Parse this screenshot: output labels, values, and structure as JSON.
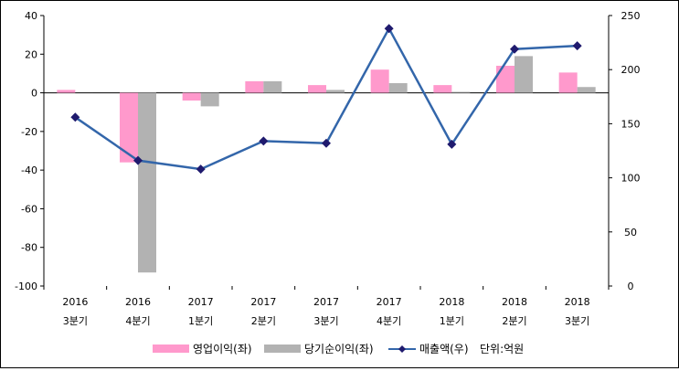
{
  "chart_data": {
    "type": "bar+line",
    "categories": [
      [
        "2016",
        "3분기"
      ],
      [
        "2016",
        "4분기"
      ],
      [
        "2017",
        "1분기"
      ],
      [
        "2017",
        "2분기"
      ],
      [
        "2017",
        "3분기"
      ],
      [
        "2017",
        "4분기"
      ],
      [
        "2018",
        "1분기"
      ],
      [
        "2018",
        "2분기"
      ],
      [
        "2018",
        "3분기"
      ]
    ],
    "series": [
      {
        "name": "영업이익(좌)",
        "kind": "bar",
        "axis": "left",
        "color": "#ff99cc",
        "values": [
          1.5,
          -36,
          -4,
          6,
          4,
          12,
          4,
          14,
          10.5
        ]
      },
      {
        "name": "당기순이익(좌)",
        "kind": "bar",
        "axis": "left",
        "color": "#b2b2b2",
        "values": [
          0,
          -93,
          -7,
          6,
          1.5,
          5,
          0.5,
          19,
          3
        ]
      },
      {
        "name": "매출액(우)",
        "kind": "line",
        "axis": "right",
        "color": "#3366aa",
        "marker_color": "#1f1a6e",
        "values": [
          156,
          116,
          108,
          134,
          132,
          238,
          131,
          219,
          222
        ]
      }
    ],
    "left_axis": {
      "ylim": [
        -100,
        40
      ],
      "ticks": [
        "40",
        "20",
        "0",
        "-20",
        "-40",
        "-60",
        "-80",
        "-100"
      ]
    },
    "right_axis": {
      "ylim": [
        0,
        250
      ],
      "ticks": [
        "250",
        "200",
        "150",
        "100",
        "50",
        "0"
      ]
    },
    "unit_note": "단위:억원",
    "grid": false,
    "legend_position": "bottom"
  }
}
